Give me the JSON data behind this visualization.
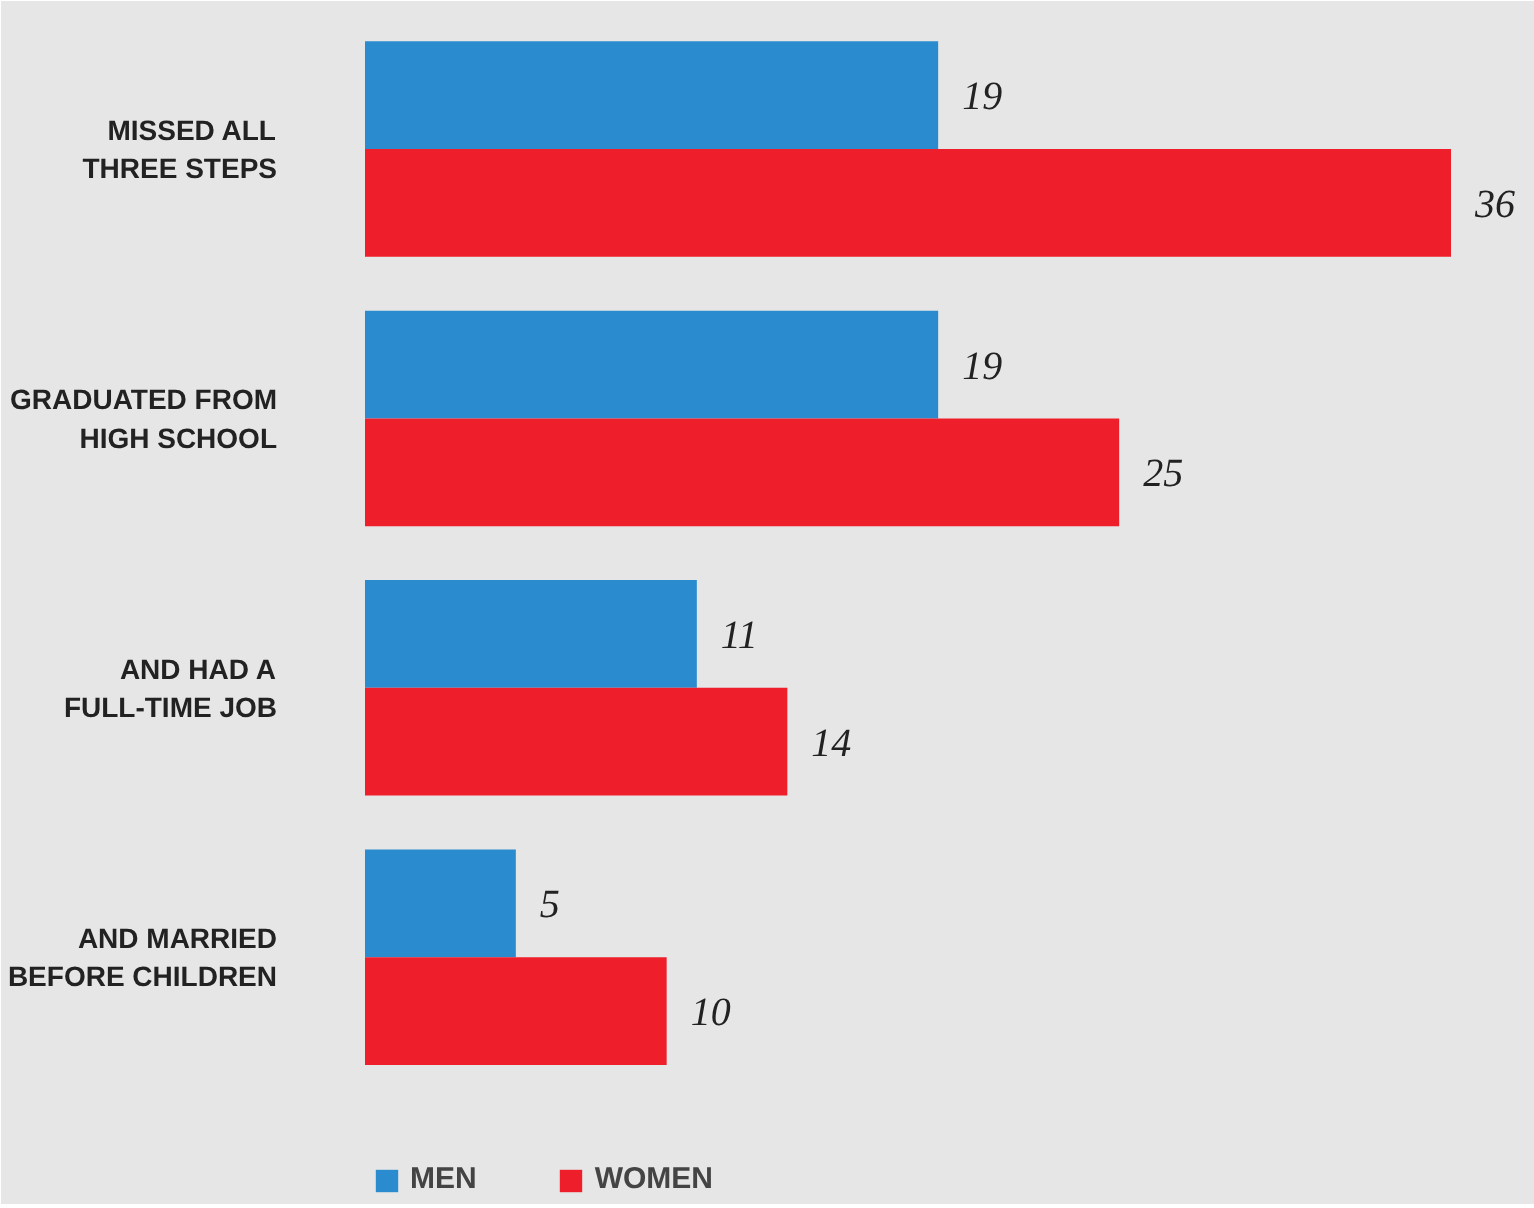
{
  "chart_data": {
    "type": "bar",
    "orientation": "horizontal",
    "categories": [
      "MISSED ALL THREE STEPS",
      "GRADUATED FROM HIGH SCHOOL",
      "AND HAD A FULL-TIME JOB",
      "AND MARRIED BEFORE CHILDREN"
    ],
    "series": [
      {
        "name": "MEN",
        "color": "#2a8ccf",
        "values": [
          19,
          19,
          11,
          5
        ]
      },
      {
        "name": "WOMEN",
        "color": "#ee1f2b",
        "values": [
          36,
          25,
          14,
          10
        ]
      }
    ],
    "data_labels": true,
    "legend": "bottom"
  }
}
